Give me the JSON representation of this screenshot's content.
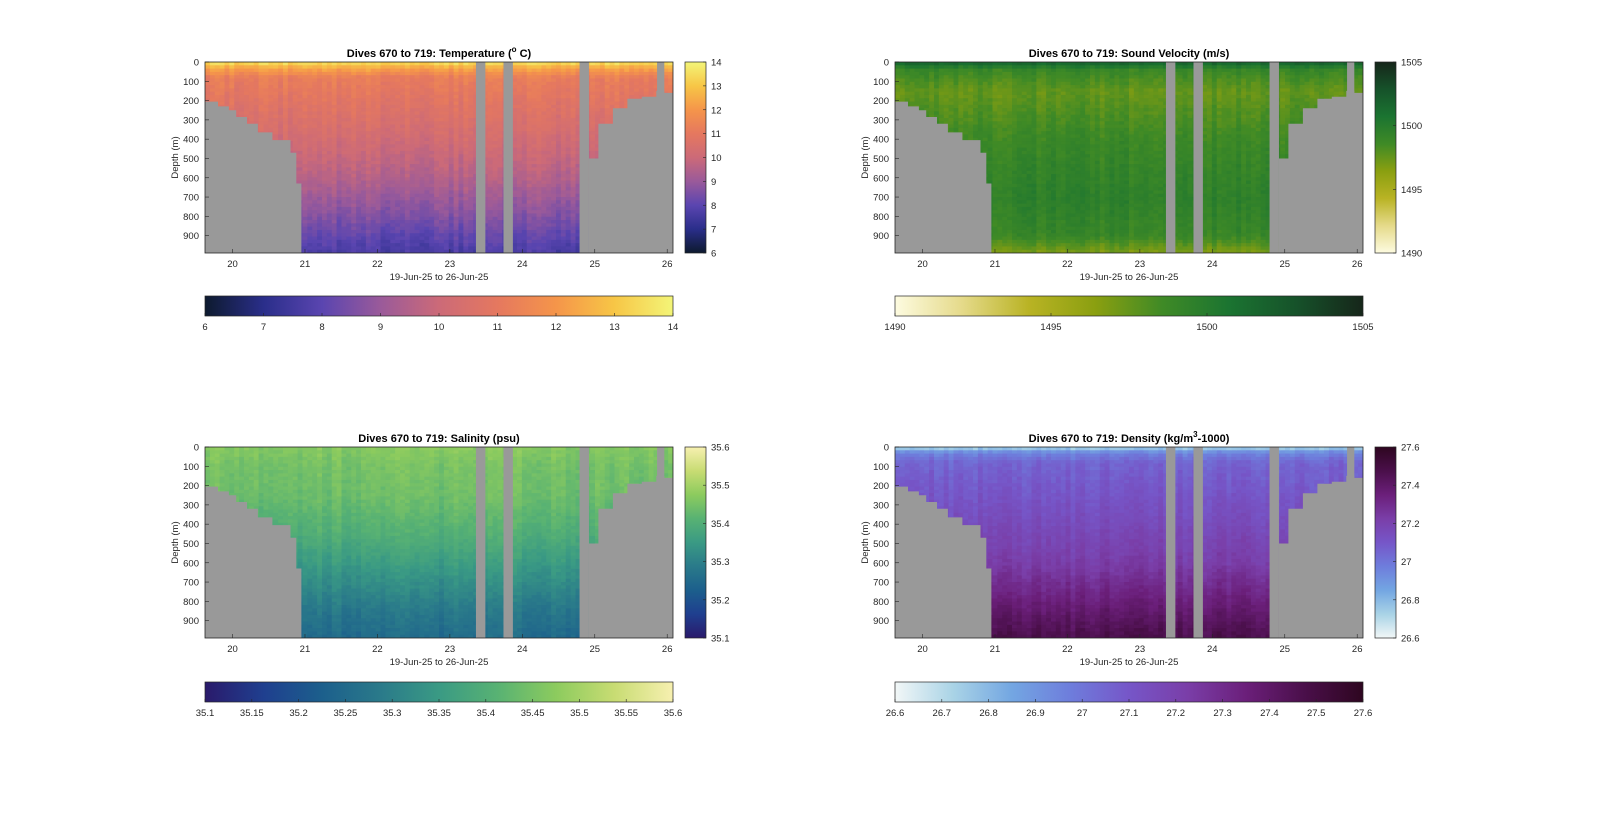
{
  "figure": {
    "background": "#ffffff",
    "mask_color": "#999999"
  },
  "chart_data": [
    {
      "type": "heatmap",
      "title_pre": "Dives 670 to 719: Temperature (",
      "title_sup": "o",
      "title_post": " C)",
      "ylabel": "Depth (m)",
      "xlabel": "19-Jun-25 to 26-Jun-25",
      "xlim": [
        19.62,
        26.08
      ],
      "ylim": [
        0,
        990
      ],
      "xticks": [
        20,
        21,
        22,
        23,
        24,
        25,
        26
      ],
      "xtick_labels": [
        "20",
        "21",
        "22",
        "23",
        "24",
        "25",
        "26"
      ],
      "yticks": [
        0,
        100,
        200,
        300,
        400,
        500,
        600,
        700,
        800,
        900
      ],
      "ytick_labels": [
        "0",
        "100",
        "200",
        "300",
        "400",
        "500",
        "600",
        "700",
        "800",
        "900"
      ],
      "clim": [
        6,
        14
      ],
      "cbar_ticks": [
        6,
        7,
        8,
        9,
        10,
        11,
        12,
        13,
        14
      ],
      "cbar_labels": [
        "6",
        "7",
        "8",
        "9",
        "10",
        "11",
        "12",
        "13",
        "14"
      ],
      "hbar_ticks": [
        6,
        7,
        8,
        9,
        10,
        11,
        12,
        13,
        14
      ],
      "hbar_labels": [
        "6",
        "7",
        "8",
        "9",
        "10",
        "11",
        "12",
        "13",
        "14"
      ],
      "colormap": [
        "#0d1a2e",
        "#2a2e8a",
        "#5a45b0",
        "#9a5a9a",
        "#cc6a78",
        "#e5785f",
        "#f5954a",
        "#f7c646",
        "#f3f578"
      ],
      "profile": [
        {
          "depth": 0,
          "value": 13.6
        },
        {
          "depth": 30,
          "value": 12.4
        },
        {
          "depth": 80,
          "value": 11.2
        },
        {
          "depth": 200,
          "value": 10.8
        },
        {
          "depth": 400,
          "value": 10.2
        },
        {
          "depth": 600,
          "value": 9.5
        },
        {
          "depth": 800,
          "value": 8.6
        },
        {
          "depth": 1000,
          "value": 7.6
        }
      ],
      "gaps": [
        [
          23.36,
          23.49
        ],
        [
          23.74,
          23.87
        ],
        [
          24.79,
          24.92
        ],
        [
          25.86,
          25.96
        ]
      ],
      "bathymetry": [
        {
          "x": 19.62,
          "depth": 205
        },
        {
          "x": 19.8,
          "depth": 230
        },
        {
          "x": 19.95,
          "depth": 250
        },
        {
          "x": 20.05,
          "depth": 285
        },
        {
          "x": 20.2,
          "depth": 320
        },
        {
          "x": 20.35,
          "depth": 365
        },
        {
          "x": 20.55,
          "depth": 405
        },
        {
          "x": 20.8,
          "depth": 470
        },
        {
          "x": 20.88,
          "depth": 630
        },
        {
          "x": 20.95,
          "depth": 990
        },
        {
          "x": 24.79,
          "depth": 990
        },
        {
          "x": 24.92,
          "depth": 500
        },
        {
          "x": 25.05,
          "depth": 320
        },
        {
          "x": 25.25,
          "depth": 240
        },
        {
          "x": 25.45,
          "depth": 190
        },
        {
          "x": 25.65,
          "depth": 180
        },
        {
          "x": 25.85,
          "depth": 150
        },
        {
          "x": 25.96,
          "depth": 160
        },
        {
          "x": 26.08,
          "depth": 215
        }
      ]
    },
    {
      "type": "heatmap",
      "title_pre": "Dives 670 to 719: Sound Velocity (m/s)",
      "title_sup": "",
      "title_post": "",
      "ylabel": "Depth (m)",
      "xlabel": "19-Jun-25 to 26-Jun-25",
      "xlim": [
        19.62,
        26.08
      ],
      "ylim": [
        0,
        990
      ],
      "xticks": [
        20,
        21,
        22,
        23,
        24,
        25,
        26
      ],
      "xtick_labels": [
        "20",
        "21",
        "22",
        "23",
        "24",
        "25",
        "26"
      ],
      "yticks": [
        0,
        100,
        200,
        300,
        400,
        500,
        600,
        700,
        800,
        900
      ],
      "ytick_labels": [
        "0",
        "100",
        "200",
        "300",
        "400",
        "500",
        "600",
        "700",
        "800",
        "900"
      ],
      "clim": [
        1490,
        1505
      ],
      "cbar_ticks": [
        1490,
        1495,
        1500,
        1505
      ],
      "cbar_labels": [
        "1490",
        "1495",
        "1500",
        "1505"
      ],
      "hbar_ticks": [
        1490,
        1495,
        1500,
        1505
      ],
      "hbar_labels": [
        "1490",
        "1495",
        "1500",
        "1505"
      ],
      "colormap": [
        "#fdfbe0",
        "#e5da8a",
        "#b9b324",
        "#8a9f10",
        "#3f8a26",
        "#1b7431",
        "#16522a",
        "#16261a"
      ],
      "profile": [
        {
          "depth": 0,
          "value": 1502.0
        },
        {
          "depth": 40,
          "value": 1499.0
        },
        {
          "depth": 150,
          "value": 1497.5
        },
        {
          "depth": 400,
          "value": 1498.8
        },
        {
          "depth": 700,
          "value": 1499.6
        },
        {
          "depth": 900,
          "value": 1499.0
        },
        {
          "depth": 1000,
          "value": 1496.5
        }
      ],
      "gaps": [
        [
          23.36,
          23.49
        ],
        [
          23.74,
          23.87
        ],
        [
          24.79,
          24.92
        ],
        [
          25.86,
          25.96
        ]
      ],
      "bathymetry": [
        {
          "x": 19.62,
          "depth": 205
        },
        {
          "x": 19.8,
          "depth": 230
        },
        {
          "x": 19.95,
          "depth": 250
        },
        {
          "x": 20.05,
          "depth": 285
        },
        {
          "x": 20.2,
          "depth": 320
        },
        {
          "x": 20.35,
          "depth": 365
        },
        {
          "x": 20.55,
          "depth": 405
        },
        {
          "x": 20.8,
          "depth": 470
        },
        {
          "x": 20.88,
          "depth": 630
        },
        {
          "x": 20.95,
          "depth": 990
        },
        {
          "x": 24.79,
          "depth": 990
        },
        {
          "x": 24.92,
          "depth": 500
        },
        {
          "x": 25.05,
          "depth": 320
        },
        {
          "x": 25.25,
          "depth": 240
        },
        {
          "x": 25.45,
          "depth": 190
        },
        {
          "x": 25.65,
          "depth": 180
        },
        {
          "x": 25.85,
          "depth": 150
        },
        {
          "x": 25.96,
          "depth": 160
        },
        {
          "x": 26.08,
          "depth": 215
        }
      ]
    },
    {
      "type": "heatmap",
      "title_pre": "Dives 670 to 719: Salinity (psu)",
      "title_sup": "",
      "title_post": "",
      "ylabel": "Depth (m)",
      "xlabel": "19-Jun-25 to 26-Jun-25",
      "xlim": [
        19.62,
        26.08
      ],
      "ylim": [
        0,
        990
      ],
      "xticks": [
        20,
        21,
        22,
        23,
        24,
        25,
        26
      ],
      "xtick_labels": [
        "20",
        "21",
        "22",
        "23",
        "24",
        "25",
        "26"
      ],
      "yticks": [
        0,
        100,
        200,
        300,
        400,
        500,
        600,
        700,
        800,
        900
      ],
      "ytick_labels": [
        "0",
        "100",
        "200",
        "300",
        "400",
        "500",
        "600",
        "700",
        "800",
        "900"
      ],
      "clim": [
        35.1,
        35.6
      ],
      "cbar_ticks": [
        35.1,
        35.2,
        35.3,
        35.4,
        35.5,
        35.6
      ],
      "cbar_labels": [
        "35.1",
        "35.2",
        "35.3",
        "35.4",
        "35.5",
        "35.6"
      ],
      "hbar_ticks": [
        35.1,
        35.15,
        35.2,
        35.25,
        35.3,
        35.35,
        35.4,
        35.45,
        35.5,
        35.55,
        35.6
      ],
      "hbar_labels": [
        "35.1",
        "35.15",
        "35.2",
        "35.25",
        "35.3",
        "35.35",
        "35.4",
        "35.45",
        "35.5",
        "35.55",
        "35.6"
      ],
      "colormap": [
        "#2a1a6b",
        "#1f3f8f",
        "#1c5f8c",
        "#2a7a8a",
        "#3a9a84",
        "#58b273",
        "#8ccb5e",
        "#c8dc73",
        "#f7f0b0"
      ],
      "profile": [
        {
          "depth": 0,
          "value": 35.47
        },
        {
          "depth": 100,
          "value": 35.45
        },
        {
          "depth": 250,
          "value": 35.44
        },
        {
          "depth": 450,
          "value": 35.4
        },
        {
          "depth": 650,
          "value": 35.34
        },
        {
          "depth": 850,
          "value": 35.28
        },
        {
          "depth": 1000,
          "value": 35.25
        }
      ],
      "gaps": [
        [
          23.36,
          23.49
        ],
        [
          23.74,
          23.87
        ],
        [
          24.79,
          24.92
        ],
        [
          25.86,
          25.96
        ]
      ],
      "bathymetry": [
        {
          "x": 19.62,
          "depth": 205
        },
        {
          "x": 19.8,
          "depth": 230
        },
        {
          "x": 19.95,
          "depth": 250
        },
        {
          "x": 20.05,
          "depth": 285
        },
        {
          "x": 20.2,
          "depth": 320
        },
        {
          "x": 20.35,
          "depth": 365
        },
        {
          "x": 20.55,
          "depth": 405
        },
        {
          "x": 20.8,
          "depth": 470
        },
        {
          "x": 20.88,
          "depth": 630
        },
        {
          "x": 20.95,
          "depth": 990
        },
        {
          "x": 24.79,
          "depth": 990
        },
        {
          "x": 24.92,
          "depth": 500
        },
        {
          "x": 25.05,
          "depth": 320
        },
        {
          "x": 25.25,
          "depth": 240
        },
        {
          "x": 25.45,
          "depth": 190
        },
        {
          "x": 25.65,
          "depth": 180
        },
        {
          "x": 25.85,
          "depth": 150
        },
        {
          "x": 25.96,
          "depth": 160
        },
        {
          "x": 26.08,
          "depth": 215
        }
      ]
    },
    {
      "type": "heatmap",
      "title_pre": "Dives 670 to 719: Density (kg/m",
      "title_sup": "3",
      "title_post": "-1000)",
      "ylabel": "Depth (m)",
      "xlabel": "19-Jun-25 to 26-Jun-25",
      "xlim": [
        19.62,
        26.08
      ],
      "ylim": [
        0,
        990
      ],
      "xticks": [
        20,
        21,
        22,
        23,
        24,
        25,
        26
      ],
      "xtick_labels": [
        "20",
        "21",
        "22",
        "23",
        "24",
        "25",
        "26"
      ],
      "yticks": [
        0,
        100,
        200,
        300,
        400,
        500,
        600,
        700,
        800,
        900
      ],
      "ytick_labels": [
        "0",
        "100",
        "200",
        "300",
        "400",
        "500",
        "600",
        "700",
        "800",
        "900"
      ],
      "clim": [
        26.6,
        27.6
      ],
      "cbar_ticks": [
        26.6,
        26.8,
        27,
        27.2,
        27.4,
        27.6
      ],
      "cbar_labels": [
        "26.6",
        "26.8",
        "27",
        "27.2",
        "27.4",
        "27.6"
      ],
      "hbar_ticks": [
        26.6,
        26.7,
        26.8,
        26.9,
        27,
        27.1,
        27.2,
        27.3,
        27.4,
        27.5,
        27.6
      ],
      "hbar_labels": [
        "26.6",
        "26.7",
        "26.8",
        "26.9",
        "27",
        "27.1",
        "27.2",
        "27.3",
        "27.4",
        "27.5",
        "27.6"
      ],
      "colormap": [
        "#f2f7f7",
        "#a9d3e6",
        "#73a6e2",
        "#6e7ddc",
        "#7656c8",
        "#7a3ea8",
        "#6b1f7a",
        "#4a0f4a",
        "#2e0620"
      ],
      "profile": [
        {
          "depth": 0,
          "value": 26.7
        },
        {
          "depth": 30,
          "value": 26.95
        },
        {
          "depth": 80,
          "value": 27.05
        },
        {
          "depth": 300,
          "value": 27.12
        },
        {
          "depth": 600,
          "value": 27.22
        },
        {
          "depth": 800,
          "value": 27.35
        },
        {
          "depth": 1000,
          "value": 27.48
        }
      ],
      "gaps": [
        [
          23.36,
          23.49
        ],
        [
          23.74,
          23.87
        ],
        [
          24.79,
          24.92
        ],
        [
          25.86,
          25.96
        ]
      ],
      "bathymetry": [
        {
          "x": 19.62,
          "depth": 205
        },
        {
          "x": 19.8,
          "depth": 230
        },
        {
          "x": 19.95,
          "depth": 250
        },
        {
          "x": 20.05,
          "depth": 285
        },
        {
          "x": 20.2,
          "depth": 320
        },
        {
          "x": 20.35,
          "depth": 365
        },
        {
          "x": 20.55,
          "depth": 405
        },
        {
          "x": 20.8,
          "depth": 470
        },
        {
          "x": 20.88,
          "depth": 630
        },
        {
          "x": 20.95,
          "depth": 990
        },
        {
          "x": 24.79,
          "depth": 990
        },
        {
          "x": 24.92,
          "depth": 500
        },
        {
          "x": 25.05,
          "depth": 320
        },
        {
          "x": 25.25,
          "depth": 240
        },
        {
          "x": 25.45,
          "depth": 190
        },
        {
          "x": 25.65,
          "depth": 180
        },
        {
          "x": 25.85,
          "depth": 150
        },
        {
          "x": 25.96,
          "depth": 160
        },
        {
          "x": 26.08,
          "depth": 215
        }
      ]
    }
  ]
}
